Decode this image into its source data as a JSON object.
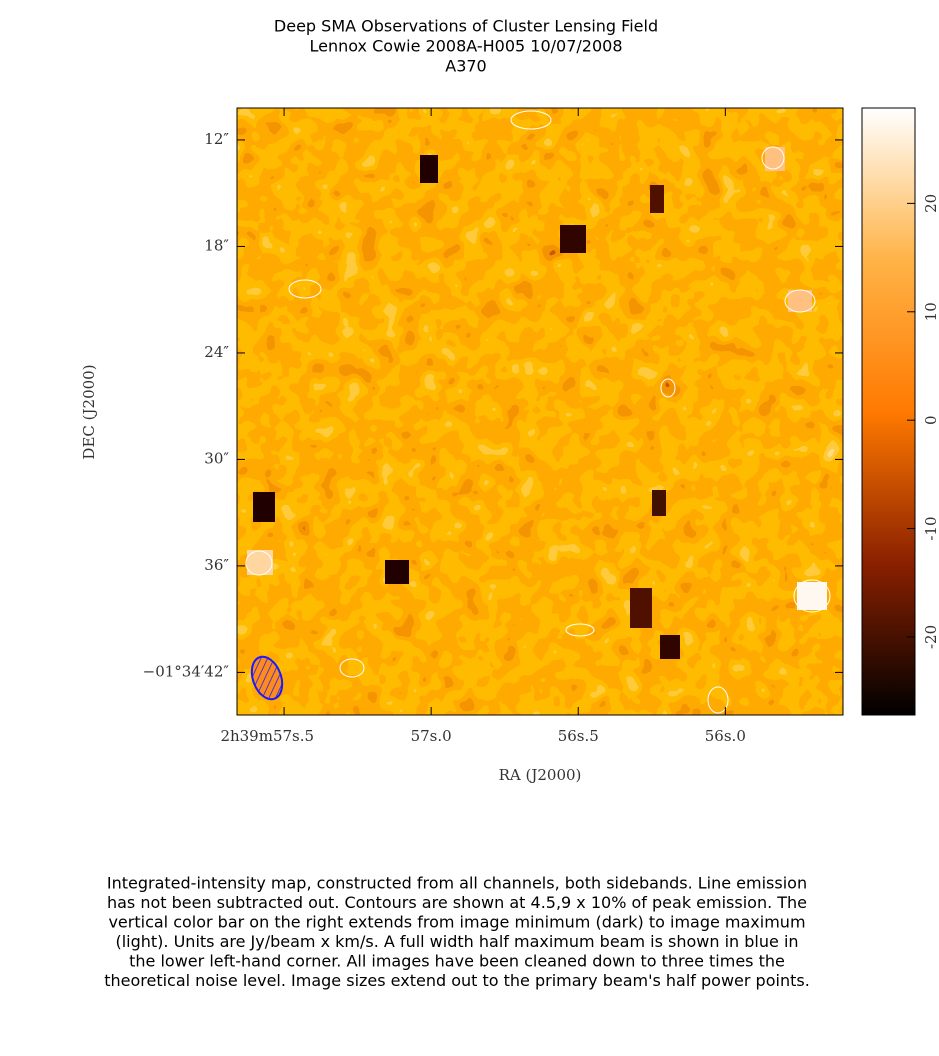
{
  "chart_data": {
    "type": "heatmap",
    "title": [
      "Deep SMA Observations of Cluster Lensing Field",
      "Lennox Cowie   2008A-H005   10/07/2008",
      "A370"
    ],
    "x_label": "RA (J2000)",
    "y_label": "DEC (J2000)",
    "xlim": [
      57.66,
      55.6
    ],
    "xticks": [
      {
        "value": 57.5,
        "label": "2h39m57s.5"
      },
      {
        "value": 57.0,
        "label": "57s.0"
      },
      {
        "value": 56.5,
        "label": "56s.5"
      },
      {
        "value": 56.0,
        "label": "56s.0"
      }
    ],
    "ylim": [
      10.2,
      44.4
    ],
    "yticks": [
      {
        "value": 12,
        "label": "12″"
      },
      {
        "value": 18,
        "label": "18″"
      },
      {
        "value": 24,
        "label": "24″"
      },
      {
        "value": 30,
        "label": "30″"
      },
      {
        "value": 36,
        "label": "36″"
      },
      {
        "value": 42,
        "label": "−01°34′42″"
      }
    ],
    "colorbar": {
      "lim": [
        -27.2,
        28.8
      ],
      "ticks": [
        20,
        10,
        0,
        -10,
        -20
      ],
      "colors": [
        "#000000",
        "#8a2000",
        "#ff7a00",
        "#ffb347",
        "#ffffff"
      ]
    },
    "caption": [
      "Integrated-intensity map, constructed from all channels, both sidebands.  Line emission",
      "has not been subtracted out.  Contours are shown at 4.5,9 x 10% of peak emission.  The",
      "vertical color bar on the right extends from image minimum (dark) to image maximum",
      "(light).  Units are Jy/beam x km/s.  A full width half maximum beam is shown in blue in",
      "the lower left-hand corner.  All images have been cleaned down to three times the",
      "theoretical noise level.  Image sizes extend out to the primary beam's half power points."
    ]
  }
}
